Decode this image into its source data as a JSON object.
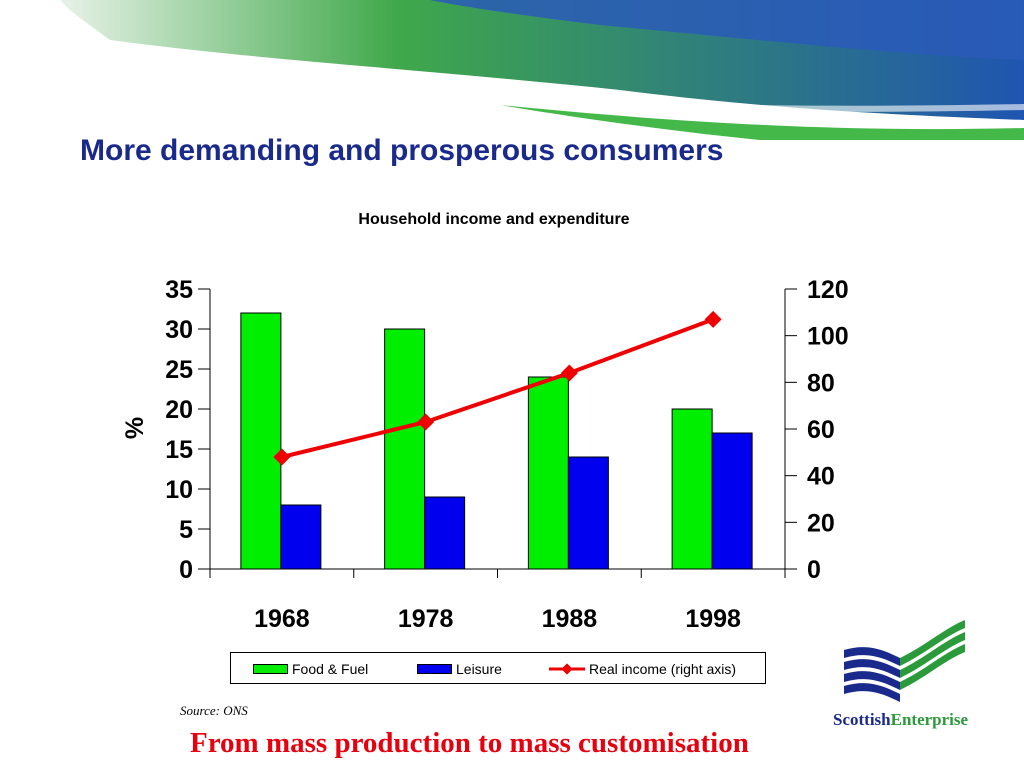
{
  "slide": {
    "title": "More demanding and prosperous consumers",
    "source": "Source: ONS",
    "footer": "From mass production to mass customisation",
    "logo": {
      "text_part1": "Scottish",
      "text_part2": "Enterprise"
    }
  },
  "colors": {
    "food_fuel": "#00ee00",
    "leisure": "#0000ee",
    "real_income": "#ee0000",
    "title": "#1a2a8c",
    "footer": "#e8000f"
  },
  "chart_data": {
    "type": "bar",
    "title": "Household income and expenditure",
    "categories": [
      "1968",
      "1978",
      "1988",
      "1998"
    ],
    "series": [
      {
        "name": "Food & Fuel",
        "type": "bar",
        "axis": "left",
        "values": [
          32,
          30,
          24,
          20
        ]
      },
      {
        "name": "Leisure",
        "type": "bar",
        "axis": "left",
        "values": [
          8,
          9,
          14,
          17
        ]
      },
      {
        "name": "Real income (right axis)",
        "type": "line",
        "axis": "right",
        "values": [
          48,
          63,
          84,
          107
        ]
      }
    ],
    "ylabel": "%",
    "ylim": [
      0,
      35
    ],
    "yticks": [
      "0",
      "5",
      "10",
      "15",
      "20",
      "25",
      "30",
      "35"
    ],
    "y2lim": [
      0,
      120
    ],
    "y2ticks": [
      "0",
      "20",
      "40",
      "60",
      "80",
      "100",
      "120"
    ],
    "legend_position": "bottom",
    "grid": false
  }
}
